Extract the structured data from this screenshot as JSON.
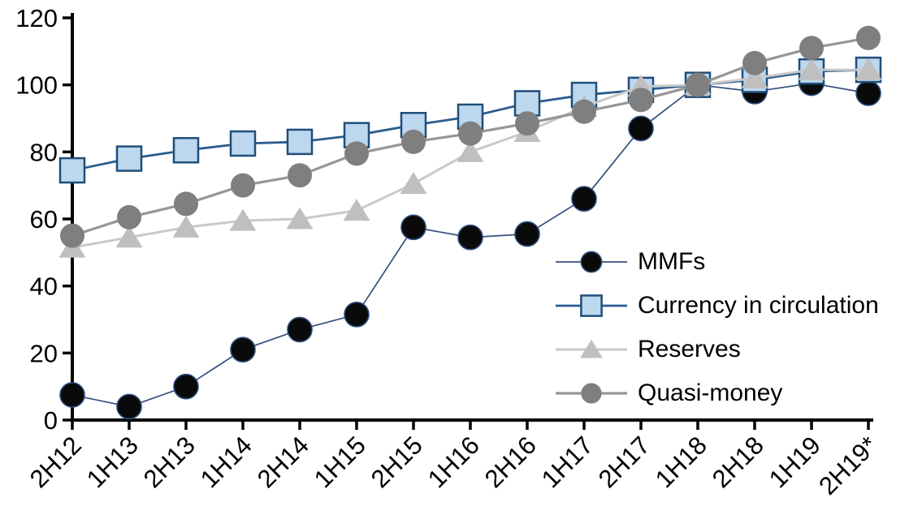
{
  "chart_data": {
    "type": "line",
    "categories": [
      "2H12",
      "1H13",
      "2H13",
      "1H14",
      "2H14",
      "1H15",
      "2H15",
      "1H16",
      "2H16",
      "1H17",
      "2H17",
      "1H18",
      "2H18",
      "1H19",
      "2H19*"
    ],
    "series": [
      {
        "name": "MMFs",
        "marker": "circle",
        "marker_color": "#0a0a0a",
        "marker_stroke": "#2b4c7e",
        "line_color": "#35507d",
        "line_width": 1.7,
        "values": [
          7.5,
          4,
          10,
          21,
          27,
          31.5,
          57.5,
          54.5,
          55.5,
          66,
          87,
          100,
          98,
          100.5,
          97.5
        ]
      },
      {
        "name": "Currency in circulation",
        "marker": "square",
        "marker_color": "#bdd7ee",
        "marker_stroke": "#1f4e79",
        "line_color": "#2a5d8e",
        "line_width": 2.8,
        "values": [
          74.5,
          78,
          80.5,
          82.5,
          83,
          85,
          88,
          90.5,
          94.5,
          97,
          98.5,
          100,
          101.5,
          104,
          104.5
        ]
      },
      {
        "name": "Reserves",
        "marker": "triangle",
        "marker_color": "#bfbfbf",
        "marker_stroke": "none",
        "line_color": "#c9c9c9",
        "line_width": 3,
        "values": [
          51.5,
          54.5,
          57.5,
          59.5,
          60,
          62.5,
          70.5,
          80,
          86,
          93.5,
          99.5,
          100,
          102,
          104.5,
          104.5
        ]
      },
      {
        "name": "Quasi-money",
        "marker": "circle",
        "marker_color": "#7f7f7f",
        "marker_stroke": "none",
        "line_color": "#969696",
        "line_width": 3.2,
        "values": [
          55,
          60.5,
          64.5,
          70,
          73,
          79.5,
          83,
          85.5,
          88.5,
          92,
          95.5,
          100,
          106.5,
          111,
          114
        ]
      }
    ],
    "ylim": [
      0,
      120
    ],
    "yticks": [
      0,
      20,
      40,
      60,
      80,
      100,
      120
    ],
    "xtick_rotation_deg": -45,
    "grid": false,
    "legend_position": "inside-right-middle",
    "axis_color": "#000000",
    "background": "#ffffff"
  }
}
